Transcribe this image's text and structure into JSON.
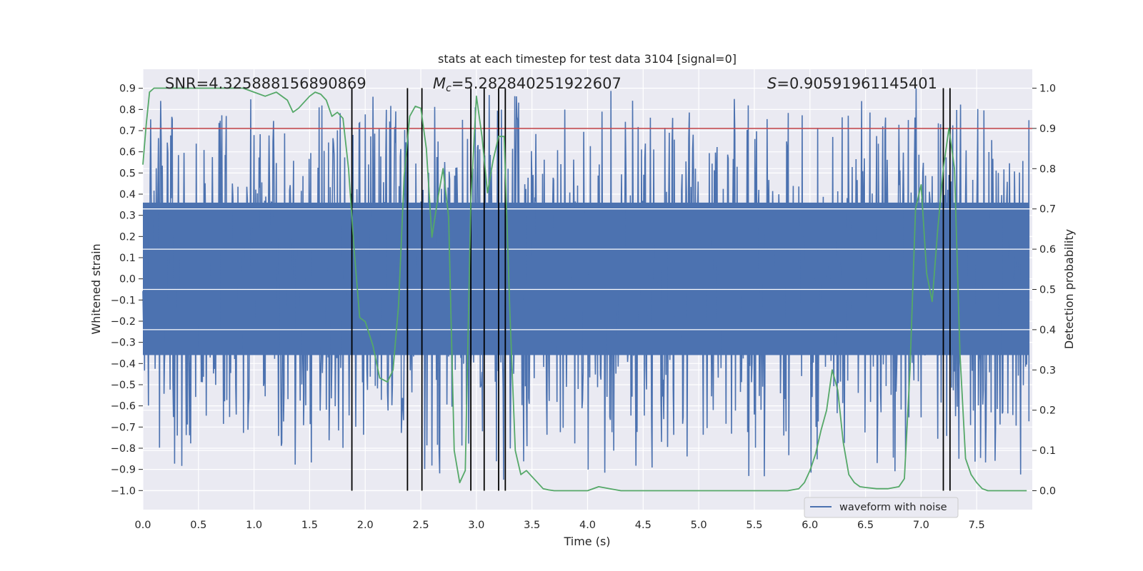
{
  "chart_data": {
    "type": "line",
    "title": "stats at each timestep for test data 3104 [signal=0]",
    "xlabel": "Time (s)",
    "ylabel_left": "Whitened strain",
    "ylabel_right": "Detection probability",
    "xlim": [
      0.0,
      8.0
    ],
    "ylim_left": [
      -1.09,
      0.99
    ],
    "ylim_right": [
      -0.047,
      1.047
    ],
    "x_ticks": [
      "0.0",
      "0.5",
      "1.0",
      "1.5",
      "2.0",
      "2.5",
      "3.0",
      "3.5",
      "4.0",
      "4.5",
      "5.0",
      "5.5",
      "6.0",
      "6.5",
      "7.0",
      "7.5"
    ],
    "y_left_ticks": [
      "0.9",
      "0.8",
      "0.7",
      "0.6",
      "0.5",
      "0.4",
      "0.3",
      "0.2",
      "0.1",
      "0.0",
      "−0.1",
      "−0.2",
      "−0.3",
      "−0.4",
      "−0.5",
      "−0.6",
      "−0.7",
      "−0.8",
      "−0.9",
      "−1.0"
    ],
    "y_right_ticks": [
      "1.0",
      "0.9",
      "0.8",
      "0.7",
      "0.6",
      "0.5",
      "0.4",
      "0.3",
      "0.2",
      "0.1",
      "0.0"
    ],
    "grid": true,
    "threshold_probability": 0.9,
    "annotations": {
      "snr": "SNR=4.325888156890869",
      "mc_symbol": "M",
      "mc_subscript": "c",
      "mc_value": "=5.282840251922607",
      "s_symbol": "S",
      "s_value": "=0.90591961145401"
    },
    "detection_times": [
      1.88,
      2.38,
      2.51,
      2.95,
      3.07,
      3.2,
      3.26,
      7.2,
      7.26
    ],
    "series": [
      {
        "name": "waveform with noise",
        "color": "#4c72b0",
        "noise_dense_amplitude": 0.36,
        "noise_peak_max": 0.9,
        "noise_trough_min": -0.95
      },
      {
        "name": "detection probability",
        "color": "#55a868",
        "x": [
          0.0,
          0.03,
          0.06,
          0.1,
          0.15,
          0.2,
          0.3,
          0.4,
          0.5,
          0.6,
          0.7,
          0.8,
          0.9,
          1.0,
          1.1,
          1.2,
          1.3,
          1.35,
          1.4,
          1.5,
          1.55,
          1.6,
          1.65,
          1.7,
          1.75,
          1.8,
          1.85,
          1.9,
          1.95,
          2.0,
          2.07,
          2.13,
          2.2,
          2.25,
          2.3,
          2.35,
          2.4,
          2.45,
          2.5,
          2.55,
          2.6,
          2.65,
          2.7,
          2.75,
          2.8,
          2.85,
          2.9,
          2.95,
          3.0,
          3.05,
          3.1,
          3.15,
          3.2,
          3.25,
          3.3,
          3.35,
          3.4,
          3.45,
          3.5,
          3.55,
          3.6,
          3.65,
          3.7,
          3.8,
          3.9,
          4.0,
          4.1,
          4.2,
          4.3,
          4.4,
          4.5,
          4.6,
          4.8,
          5.0,
          5.2,
          5.4,
          5.6,
          5.8,
          5.9,
          5.95,
          6.0,
          6.05,
          6.1,
          6.15,
          6.2,
          6.25,
          6.3,
          6.35,
          6.4,
          6.45,
          6.5,
          6.6,
          6.7,
          6.8,
          6.85,
          6.9,
          6.95,
          7.0,
          7.05,
          7.1,
          7.15,
          7.2,
          7.25,
          7.3,
          7.35,
          7.4,
          7.45,
          7.5,
          7.55,
          7.6,
          7.7,
          7.8,
          7.95
        ],
        "y": [
          0.81,
          0.91,
          0.99,
          1.0,
          1.0,
          1.0,
          1.0,
          1.0,
          1.0,
          1.0,
          1.0,
          1.0,
          1.0,
          0.99,
          0.98,
          0.99,
          0.97,
          0.94,
          0.95,
          0.98,
          0.99,
          0.985,
          0.97,
          0.93,
          0.94,
          0.925,
          0.8,
          0.6,
          0.43,
          0.42,
          0.36,
          0.28,
          0.27,
          0.3,
          0.46,
          0.78,
          0.93,
          0.955,
          0.95,
          0.85,
          0.63,
          0.72,
          0.8,
          0.68,
          0.1,
          0.02,
          0.05,
          0.72,
          0.98,
          0.88,
          0.74,
          0.82,
          0.88,
          0.88,
          0.45,
          0.1,
          0.04,
          0.05,
          0.035,
          0.02,
          0.005,
          0.002,
          0.0,
          0.0,
          0.0,
          0.0,
          0.01,
          0.005,
          0.0,
          0.0,
          0.0,
          0.0,
          0.0,
          0.0,
          0.0,
          0.0,
          0.0,
          0.0,
          0.005,
          0.02,
          0.05,
          0.09,
          0.15,
          0.2,
          0.3,
          0.25,
          0.12,
          0.04,
          0.02,
          0.01,
          0.008,
          0.005,
          0.005,
          0.01,
          0.03,
          0.3,
          0.7,
          0.76,
          0.54,
          0.47,
          0.65,
          0.8,
          0.9,
          0.8,
          0.34,
          0.08,
          0.04,
          0.02,
          0.005,
          0.0,
          0.0,
          0.0,
          0.0
        ]
      }
    ],
    "legend": {
      "label": "waveform with noise",
      "location": "lower-right"
    }
  }
}
